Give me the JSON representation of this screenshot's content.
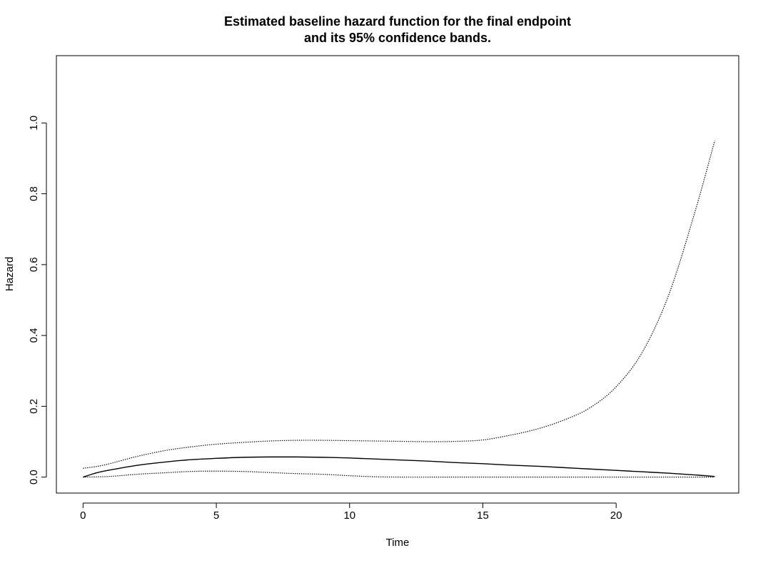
{
  "chart_data": {
    "type": "line",
    "title_lines": [
      "Estimated baseline hazard function for the final endpoint",
      "and its 95% confidence bands."
    ],
    "xlabel": "Time",
    "ylabel": "Hazard",
    "xlim": [
      -1,
      24.6
    ],
    "ylim": [
      -0.045,
      1.19
    ],
    "x_ticks": [
      0,
      5,
      10,
      15,
      20
    ],
    "y_ticks": [
      0.0,
      0.2,
      0.4,
      0.6,
      0.8,
      1.0
    ],
    "x_tick_labels": [
      "0",
      "5",
      "10",
      "15",
      "20"
    ],
    "y_tick_labels": [
      "0.0",
      "0.2",
      "0.4",
      "0.6",
      "0.8",
      "1.0"
    ],
    "grid": false,
    "legend": "none",
    "series": [
      {
        "style": "solid",
        "color": "#000000",
        "points": [
          [
            0,
            0.0
          ],
          [
            0.5,
            0.012
          ],
          [
            1,
            0.02
          ],
          [
            2,
            0.033
          ],
          [
            3,
            0.042
          ],
          [
            4,
            0.049
          ],
          [
            5,
            0.053
          ],
          [
            6,
            0.056
          ],
          [
            7,
            0.057
          ],
          [
            8,
            0.057
          ],
          [
            9,
            0.056
          ],
          [
            10,
            0.054
          ],
          [
            11,
            0.051
          ],
          [
            12,
            0.048
          ],
          [
            13,
            0.045
          ],
          [
            14,
            0.041
          ],
          [
            15,
            0.038
          ],
          [
            16,
            0.034
          ],
          [
            17,
            0.031
          ],
          [
            18,
            0.027
          ],
          [
            19,
            0.023
          ],
          [
            20,
            0.019
          ],
          [
            21,
            0.015
          ],
          [
            22,
            0.011
          ],
          [
            23,
            0.006
          ],
          [
            23.7,
            0.002
          ]
        ]
      },
      {
        "style": "dotted",
        "color": "#000000",
        "points": [
          [
            0,
            0.025
          ],
          [
            0.5,
            0.03
          ],
          [
            1,
            0.038
          ],
          [
            2,
            0.058
          ],
          [
            3,
            0.074
          ],
          [
            4,
            0.085
          ],
          [
            5,
            0.093
          ],
          [
            6,
            0.098
          ],
          [
            7,
            0.102
          ],
          [
            8,
            0.104
          ],
          [
            9,
            0.104
          ],
          [
            10,
            0.103
          ],
          [
            11,
            0.102
          ],
          [
            12,
            0.101
          ],
          [
            13,
            0.1
          ],
          [
            14,
            0.101
          ],
          [
            15,
            0.105
          ],
          [
            16,
            0.118
          ],
          [
            17,
            0.135
          ],
          [
            18,
            0.16
          ],
          [
            19,
            0.195
          ],
          [
            20,
            0.255
          ],
          [
            21,
            0.355
          ],
          [
            22,
            0.52
          ],
          [
            23,
            0.76
          ],
          [
            23.7,
            0.95
          ]
        ]
      },
      {
        "style": "dotted",
        "color": "#000000",
        "points": [
          [
            0,
            0.0
          ],
          [
            1,
            0.002
          ],
          [
            2,
            0.008
          ],
          [
            3,
            0.012
          ],
          [
            4,
            0.016
          ],
          [
            5,
            0.017
          ],
          [
            6,
            0.016
          ],
          [
            7,
            0.013
          ],
          [
            8,
            0.01
          ],
          [
            9,
            0.008
          ],
          [
            10,
            0.004
          ],
          [
            11,
            0.001
          ],
          [
            12,
            0.0
          ],
          [
            13,
            0.0
          ],
          [
            14,
            0.0
          ],
          [
            15,
            0.0
          ],
          [
            16,
            0.0
          ],
          [
            17,
            0.0
          ],
          [
            18,
            0.0
          ],
          [
            19,
            0.0
          ],
          [
            20,
            0.0
          ],
          [
            21,
            0.0
          ],
          [
            22,
            0.0
          ],
          [
            23,
            0.0
          ],
          [
            23.7,
            0.0
          ]
        ]
      }
    ]
  }
}
